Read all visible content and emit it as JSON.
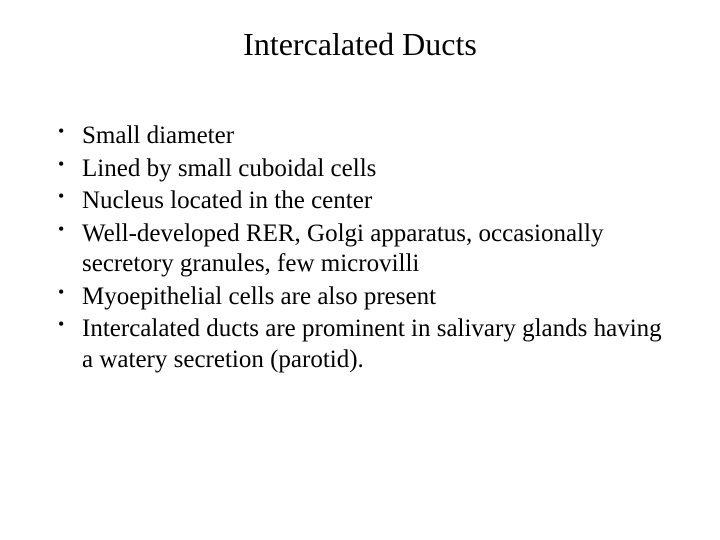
{
  "slide": {
    "title": "Intercalated Ducts",
    "bullets": [
      "Small diameter",
      "Lined by small cuboidal cells",
      "Nucleus located in the center",
      "Well-developed RER, Golgi apparatus, occasionally secretory granules, few microvilli",
      "Myoepithelial cells are also present",
      "Intercalated ducts are prominent in salivary glands having a watery secretion (parotid)."
    ],
    "title_fontsize": 32,
    "body_fontsize": 25,
    "text_color": "#000000",
    "background_color": "#ffffff",
    "font_family": "Georgia, 'Times New Roman', serif"
  }
}
